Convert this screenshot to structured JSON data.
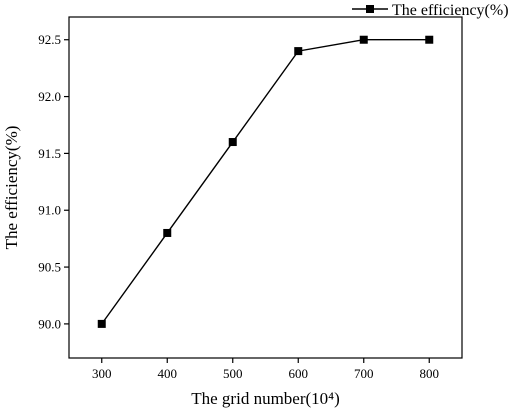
{
  "chart_data": {
    "type": "line",
    "title": "",
    "xlabel": "The grid number(10⁴)",
    "ylabel": "The efficiency(%)",
    "xlim": [
      250,
      850
    ],
    "ylim": [
      89.7,
      92.7
    ],
    "x_ticks": [
      300,
      400,
      500,
      600,
      700,
      800
    ],
    "y_ticks": [
      90.0,
      90.5,
      91.0,
      91.5,
      92.0,
      92.5
    ],
    "x_tick_labels": [
      "300",
      "400",
      "500",
      "600",
      "700",
      "800"
    ],
    "y_tick_labels": [
      "90.0",
      "90.5",
      "91.0",
      "91.5",
      "92.0",
      "92.5"
    ],
    "grid": false,
    "legend_position": "top-right",
    "series": [
      {
        "name": "The efficiency(%)",
        "marker": "square",
        "color": "#000000",
        "x": [
          300,
          400,
          500,
          600,
          700,
          800
        ],
        "y": [
          90.0,
          90.8,
          91.6,
          92.4,
          92.5,
          92.5
        ]
      }
    ]
  }
}
